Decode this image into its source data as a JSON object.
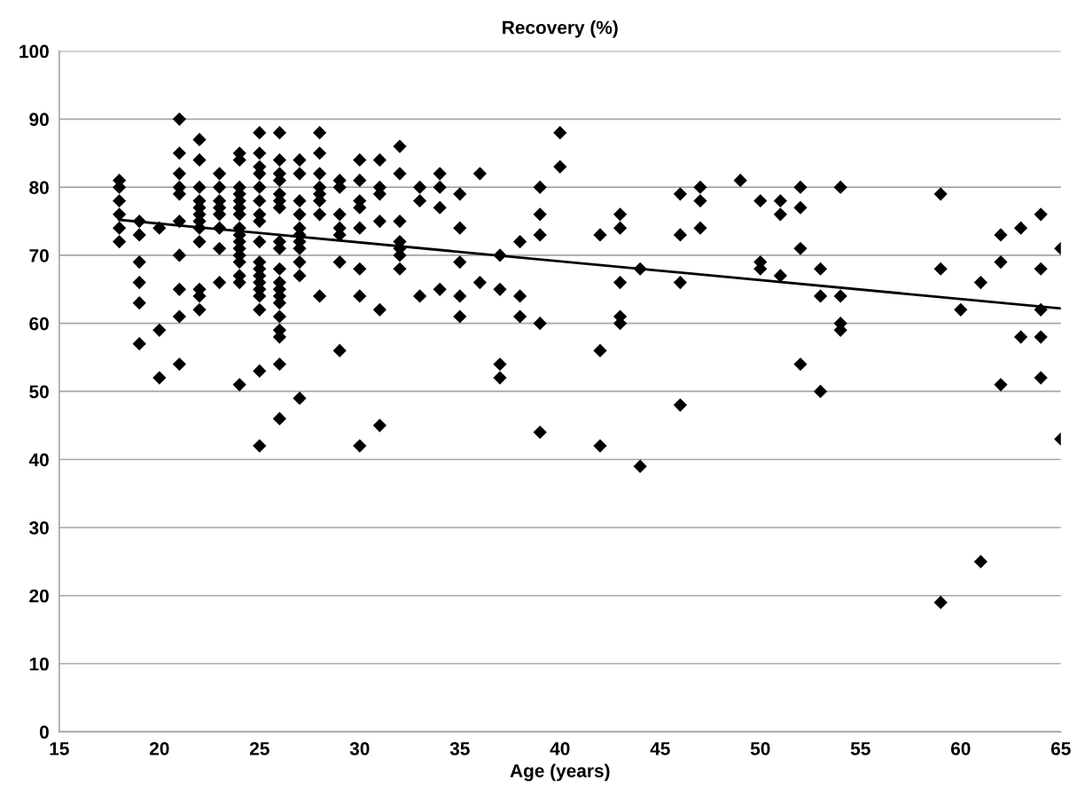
{
  "chart_data": {
    "type": "scatter",
    "title": "Recovery (%)",
    "xlabel": "Age (years)",
    "xlim": [
      15,
      65
    ],
    "xticks": [
      15,
      20,
      25,
      30,
      35,
      40,
      45,
      50,
      55,
      60,
      65
    ],
    "ylim": [
      0,
      100
    ],
    "yticks": [
      0,
      10,
      20,
      30,
      40,
      50,
      60,
      70,
      80,
      90,
      100
    ],
    "grid": "y",
    "legend": false,
    "marker": "diamond",
    "series": [
      {
        "color": "#000000",
        "x": [
          18,
          18,
          18,
          18,
          18,
          18,
          19,
          19,
          19,
          19,
          19,
          19,
          20,
          20,
          20,
          21,
          21,
          21,
          21,
          21,
          21,
          21,
          21,
          21,
          21,
          22,
          22,
          22,
          22,
          22,
          22,
          22,
          22,
          22,
          22,
          22,
          22,
          23,
          23,
          23,
          23,
          23,
          23,
          23,
          23,
          24,
          24,
          24,
          24,
          24,
          24,
          24,
          24,
          24,
          24,
          24,
          24,
          24,
          24,
          24,
          24,
          25,
          25,
          25,
          25,
          25,
          25,
          25,
          25,
          25,
          25,
          25,
          25,
          25,
          25,
          25,
          25,
          25,
          25,
          26,
          26,
          26,
          26,
          26,
          26,
          26,
          26,
          26,
          26,
          26,
          26,
          26,
          26,
          26,
          26,
          26,
          26,
          26,
          27,
          27,
          27,
          27,
          27,
          27,
          27,
          27,
          27,
          27,
          27,
          28,
          28,
          28,
          28,
          28,
          28,
          28,
          28,
          29,
          29,
          29,
          29,
          29,
          29,
          29,
          30,
          30,
          30,
          30,
          30,
          30,
          30,
          30,
          31,
          31,
          31,
          31,
          31,
          31,
          32,
          32,
          32,
          32,
          32,
          32,
          32,
          33,
          33,
          33,
          34,
          34,
          34,
          34,
          35,
          35,
          35,
          35,
          35,
          36,
          36,
          37,
          37,
          37,
          37,
          38,
          38,
          38,
          39,
          39,
          39,
          39,
          39,
          40,
          40,
          42,
          42,
          42,
          43,
          43,
          43,
          43,
          43,
          44,
          44,
          46,
          46,
          46,
          46,
          47,
          47,
          47,
          49,
          50,
          50,
          50,
          51,
          51,
          51,
          52,
          52,
          52,
          52,
          53,
          53,
          53,
          54,
          54,
          54,
          54,
          59,
          59,
          59,
          60,
          61,
          61,
          62,
          62,
          62,
          63,
          63,
          64,
          64,
          64,
          64,
          64,
          65,
          65
        ],
        "values": [
          81,
          80,
          78,
          76,
          74,
          72,
          75,
          73,
          69,
          66,
          63,
          57,
          74,
          59,
          52,
          90,
          85,
          82,
          80,
          79,
          75,
          70,
          65,
          61,
          54,
          87,
          84,
          80,
          78,
          77,
          76,
          75,
          74,
          72,
          65,
          64,
          62,
          82,
          80,
          78,
          77,
          76,
          74,
          71,
          66,
          85,
          84,
          80,
          79,
          78,
          77,
          76,
          74,
          73,
          72,
          71,
          70,
          69,
          67,
          66,
          51,
          88,
          85,
          83,
          82,
          80,
          78,
          76,
          75,
          72,
          69,
          68,
          67,
          66,
          65,
          64,
          62,
          53,
          42,
          88,
          84,
          82,
          81,
          79,
          78,
          77,
          72,
          71,
          68,
          66,
          65,
          64,
          63,
          61,
          59,
          58,
          54,
          46,
          84,
          82,
          78,
          76,
          74,
          73,
          72,
          71,
          69,
          67,
          49,
          88,
          85,
          82,
          80,
          79,
          78,
          76,
          64,
          81,
          80,
          76,
          74,
          73,
          69,
          56,
          84,
          81,
          78,
          77,
          74,
          68,
          64,
          42,
          84,
          80,
          79,
          75,
          62,
          45,
          86,
          82,
          75,
          72,
          71,
          70,
          68,
          80,
          78,
          64,
          82,
          80,
          77,
          65,
          79,
          74,
          69,
          64,
          61,
          82,
          66,
          70,
          65,
          54,
          52,
          72,
          64,
          61,
          80,
          76,
          73,
          60,
          44,
          88,
          83,
          73,
          56,
          42,
          76,
          74,
          66,
          61,
          60,
          68,
          39,
          79,
          73,
          66,
          48,
          80,
          78,
          74,
          81,
          78,
          69,
          68,
          78,
          76,
          67,
          80,
          77,
          71,
          54,
          68,
          64,
          50,
          80,
          64,
          60,
          59,
          79,
          68,
          19,
          62,
          66,
          25,
          73,
          69,
          51,
          74,
          58,
          76,
          68,
          62,
          58,
          52,
          71,
          43
        ]
      },
      {
        "type": "line",
        "color": "#000000",
        "marker": "none",
        "line_style": "solid",
        "x": [
          18,
          65
        ],
        "values": [
          75.2,
          62.2
        ]
      }
    ]
  }
}
